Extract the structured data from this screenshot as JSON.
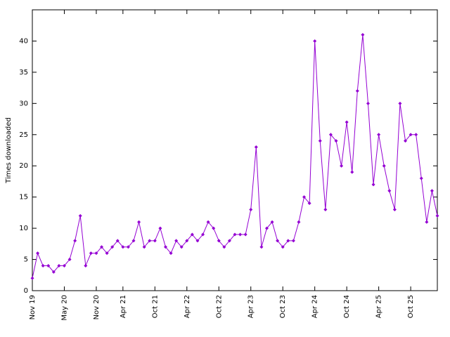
{
  "chart_data": {
    "type": "line",
    "y_label": "Times downloaded",
    "categories": [
      "Nov 19",
      null,
      null,
      null,
      null,
      null,
      "May 20",
      null,
      null,
      null,
      null,
      null,
      "Nov 20",
      null,
      null,
      null,
      null,
      "Apr 21",
      null,
      null,
      null,
      null,
      null,
      "Oct 21",
      null,
      null,
      null,
      null,
      null,
      "Apr 22",
      null,
      null,
      null,
      null,
      null,
      "Oct 22",
      null,
      null,
      null,
      null,
      null,
      "Apr 23",
      null,
      null,
      null,
      null,
      null,
      "Oct 23",
      null,
      null,
      null,
      null,
      null,
      "Apr 24",
      null,
      null,
      null,
      null,
      null,
      "Oct 24",
      null,
      null,
      null,
      null,
      null,
      "Apr 25",
      null,
      null,
      null,
      null,
      null,
      "Oct 25",
      null,
      null,
      null,
      null,
      null
    ],
    "values": [
      2,
      6,
      4,
      4,
      3,
      4,
      4,
      5,
      8,
      12,
      4,
      6,
      6,
      7,
      6,
      7,
      8,
      7,
      7,
      8,
      11,
      7,
      8,
      8,
      10,
      7,
      6,
      8,
      7,
      8,
      9,
      8,
      9,
      11,
      10,
      8,
      7,
      8,
      9,
      9,
      9,
      13,
      23,
      7,
      10,
      11,
      8,
      7,
      8,
      8,
      11,
      15,
      14,
      40,
      24,
      13,
      25,
      24,
      20,
      27,
      19,
      32,
      41,
      30,
      17,
      25,
      20,
      16,
      13,
      30,
      24,
      25,
      25,
      18,
      11,
      16,
      12
    ],
    "color": "#9400d3",
    "ylim": [
      0,
      45
    ],
    "yticks": [
      0,
      5,
      10,
      15,
      20,
      25,
      30,
      35,
      40
    ]
  }
}
